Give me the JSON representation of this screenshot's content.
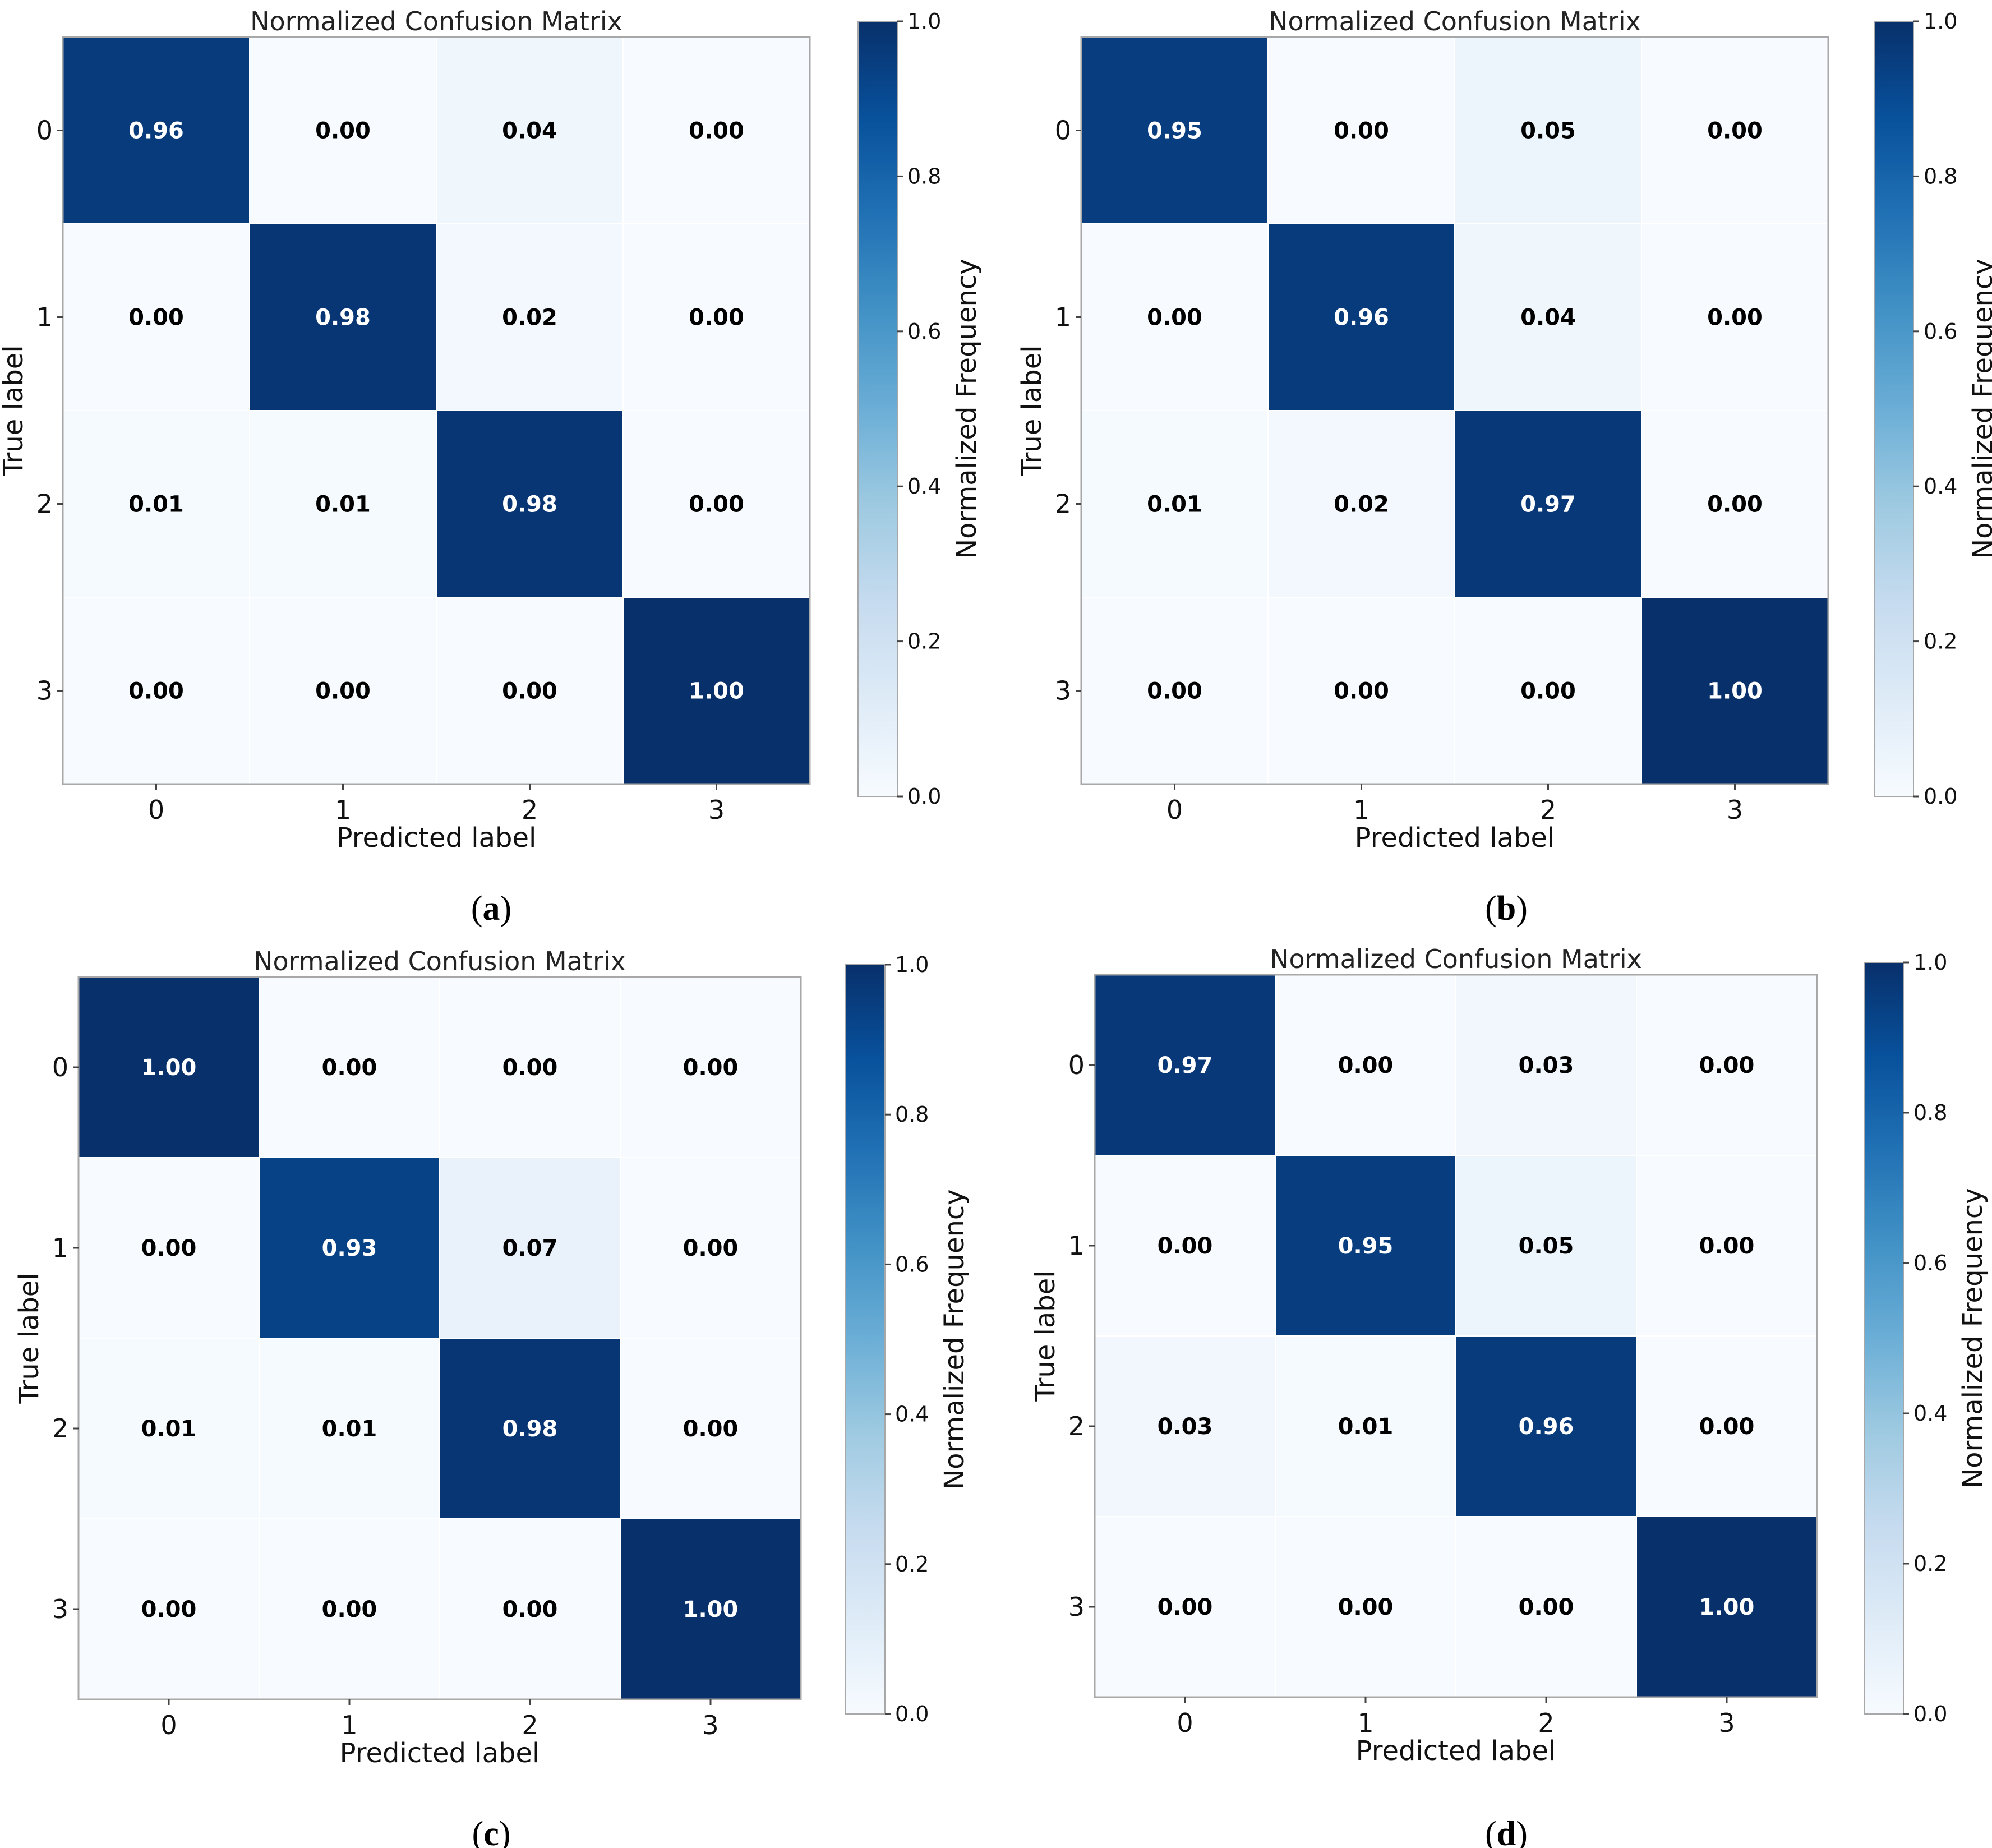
{
  "chart_data": [
    {
      "type": "heatmap",
      "panel": "(a)",
      "panel_letter": "a",
      "title": "Normalized Confusion Matrix",
      "xlabel": "Predicted label",
      "ylabel": "True label",
      "x_ticks": [
        "0",
        "1",
        "2",
        "3"
      ],
      "y_ticks": [
        "0",
        "1",
        "2",
        "3"
      ],
      "matrix": [
        [
          0.96,
          0.0,
          0.04,
          0.0
        ],
        [
          0.0,
          0.98,
          0.02,
          0.0
        ],
        [
          0.01,
          0.01,
          0.98,
          0.0
        ],
        [
          0.0,
          0.0,
          0.0,
          1.0
        ]
      ],
      "colorbar": {
        "label": "Normalized Frequency",
        "range": [
          0.0,
          1.0
        ],
        "ticks": [
          "0.0",
          "0.2",
          "0.4",
          "0.6",
          "0.8",
          "1.0"
        ],
        "colormap": "Blues"
      }
    },
    {
      "type": "heatmap",
      "panel": "(b)",
      "panel_letter": "b",
      "title": "Normalized Confusion Matrix",
      "xlabel": "Predicted label",
      "ylabel": "True label",
      "x_ticks": [
        "0",
        "1",
        "2",
        "3"
      ],
      "y_ticks": [
        "0",
        "1",
        "2",
        "3"
      ],
      "matrix": [
        [
          0.95,
          0.0,
          0.05,
          0.0
        ],
        [
          0.0,
          0.96,
          0.04,
          0.0
        ],
        [
          0.01,
          0.02,
          0.97,
          0.0
        ],
        [
          0.0,
          0.0,
          0.0,
          1.0
        ]
      ],
      "colorbar": {
        "label": "Normalized Frequency",
        "range": [
          0.0,
          1.0
        ],
        "ticks": [
          "0.0",
          "0.2",
          "0.4",
          "0.6",
          "0.8",
          "1.0"
        ],
        "colormap": "Blues"
      }
    },
    {
      "type": "heatmap",
      "panel": "(c)",
      "panel_letter": "c",
      "title": "Normalized Confusion Matrix",
      "xlabel": "Predicted label",
      "ylabel": "True label",
      "x_ticks": [
        "0",
        "1",
        "2",
        "3"
      ],
      "y_ticks": [
        "0",
        "1",
        "2",
        "3"
      ],
      "matrix": [
        [
          1.0,
          0.0,
          0.0,
          0.0
        ],
        [
          0.0,
          0.93,
          0.07,
          0.0
        ],
        [
          0.01,
          0.01,
          0.98,
          0.0
        ],
        [
          0.0,
          0.0,
          0.0,
          1.0
        ]
      ],
      "colorbar": {
        "label": "Normalized Frequency",
        "range": [
          0.0,
          1.0
        ],
        "ticks": [
          "0.0",
          "0.2",
          "0.4",
          "0.6",
          "0.8",
          "1.0"
        ],
        "colormap": "Blues"
      }
    },
    {
      "type": "heatmap",
      "panel": "(d)",
      "panel_letter": "d",
      "title": "Normalized Confusion Matrix",
      "xlabel": "Predicted label",
      "ylabel": "True label",
      "x_ticks": [
        "0",
        "1",
        "2",
        "3"
      ],
      "y_ticks": [
        "0",
        "1",
        "2",
        "3"
      ],
      "matrix": [
        [
          0.97,
          0.0,
          0.03,
          0.0
        ],
        [
          0.0,
          0.95,
          0.05,
          0.0
        ],
        [
          0.03,
          0.01,
          0.96,
          0.0
        ],
        [
          0.0,
          0.0,
          0.0,
          1.0
        ]
      ],
      "colorbar": {
        "label": "Normalized Frequency",
        "range": [
          0.0,
          1.0
        ],
        "ticks": [
          "0.0",
          "0.2",
          "0.4",
          "0.6",
          "0.8",
          "1.0"
        ],
        "colormap": "Blues"
      }
    }
  ],
  "colors": {
    "low": "#f7fbff",
    "high": "#08306b",
    "dark_text": "#000000",
    "light_text": "#ffffff",
    "frame": "#a8a8a8"
  }
}
